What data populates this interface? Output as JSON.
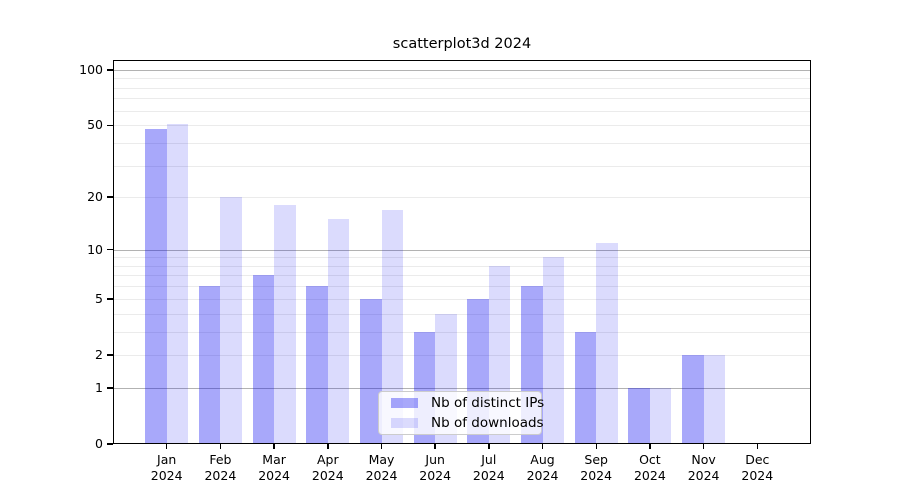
{
  "chart_data": {
    "type": "bar",
    "title": "scatterplot3d 2024",
    "categories": [
      "Jan",
      "Feb",
      "Mar",
      "Apr",
      "May",
      "Jun",
      "Jul",
      "Aug",
      "Sep",
      "Oct",
      "Nov",
      "Dec"
    ],
    "year_label": "2024",
    "series": [
      {
        "name": "Nb of distinct IPs",
        "color": "rgba(0,0,240,0.34)",
        "values": [
          48,
          6,
          7,
          6,
          5,
          3,
          5,
          6,
          3,
          1,
          2,
          0
        ]
      },
      {
        "name": "Nb of downloads",
        "color": "rgba(0,0,240,0.14)",
        "values": [
          51,
          20,
          18,
          15,
          17,
          4,
          8,
          9,
          11,
          1,
          2,
          0
        ]
      }
    ],
    "y_axis": {
      "scale": "log1p",
      "ticks": [
        0,
        1,
        2,
        5,
        10,
        20,
        50,
        100
      ],
      "major_grid": [
        1,
        10,
        100
      ],
      "minor_grid": [
        2,
        3,
        4,
        5,
        6,
        7,
        8,
        9,
        20,
        30,
        40,
        50,
        60,
        70,
        80,
        90
      ],
      "ylim": [
        0,
        113
      ]
    },
    "xlabel": "",
    "ylabel": "",
    "grid": "horizontal",
    "legend_position": "lower center"
  },
  "colors": {
    "bar_distinct_ips": "#aaaaf8",
    "bar_downloads": "#dcdcf8",
    "major_grid": "#b2b2b2",
    "minor_grid": "#ebebeb",
    "axis": "#000000"
  }
}
